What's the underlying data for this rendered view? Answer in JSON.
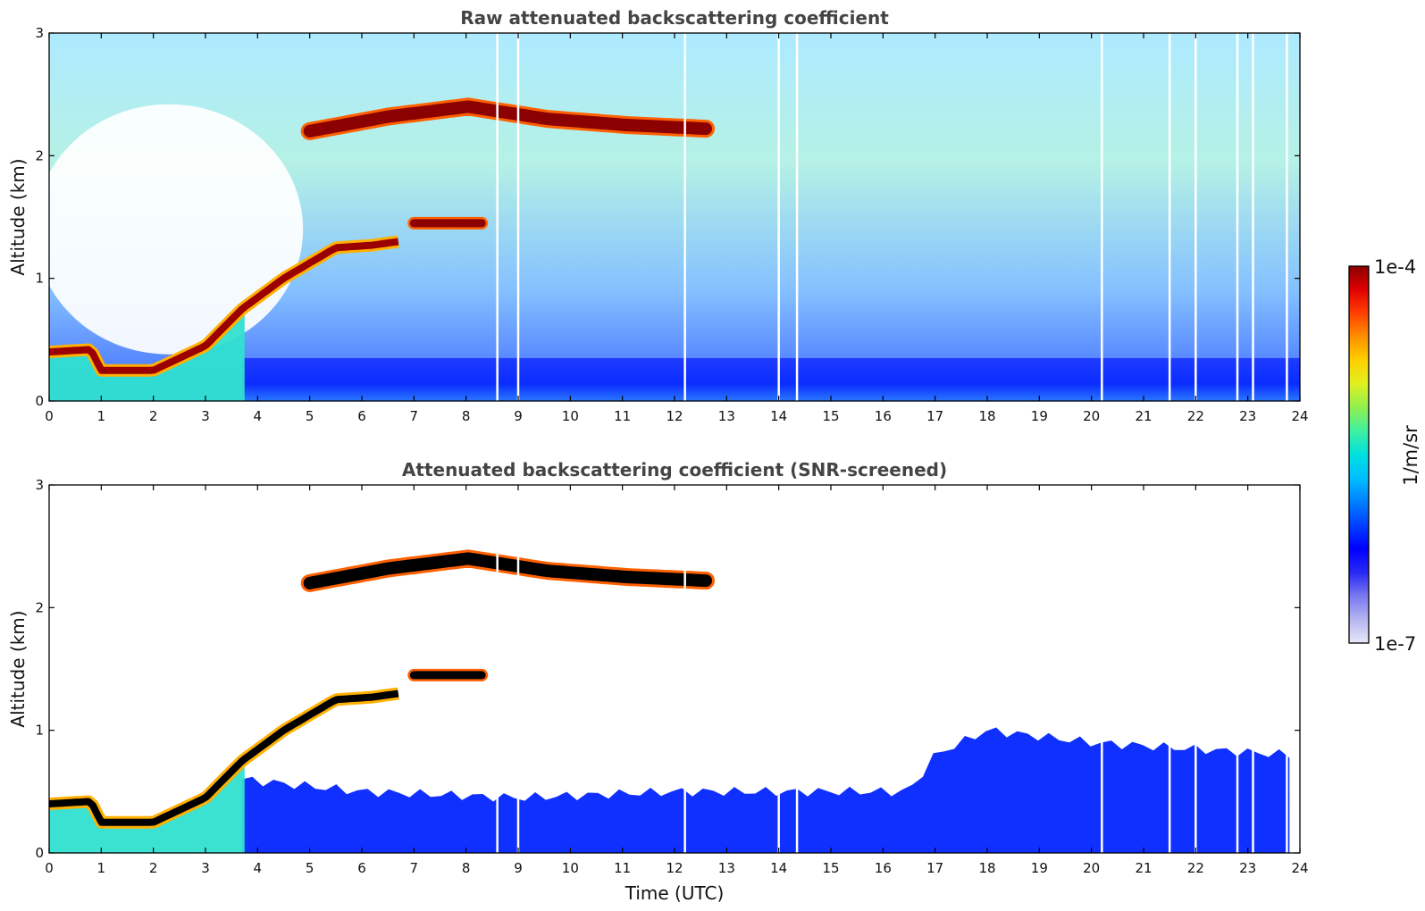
{
  "chart_data": [
    {
      "type": "heatmap",
      "title": "Raw attenuated backscattering coefficient",
      "xlabel": "",
      "ylabel": "Altitude (km)",
      "xlim": [
        0,
        24
      ],
      "ylim": [
        0,
        3
      ],
      "xticks": [
        "0",
        "1",
        "2",
        "3",
        "4",
        "5",
        "6",
        "7",
        "8",
        "9",
        "10",
        "11",
        "12",
        "13",
        "14",
        "15",
        "16",
        "17",
        "18",
        "19",
        "20",
        "21",
        "22",
        "23",
        "24"
      ],
      "yticks": [
        "0",
        "1",
        "2",
        "3"
      ],
      "features": [
        {
          "kind": "boundary_layer_top",
          "x": [
            0,
            0.8,
            1.0,
            2.0,
            3.0,
            3.7,
            4.5,
            5.5,
            6.2,
            6.7
          ],
          "y": [
            0.4,
            0.42,
            0.25,
            0.25,
            0.45,
            0.75,
            1.0,
            1.25,
            1.27,
            1.3
          ]
        },
        {
          "kind": "cloud_layer",
          "x_start": 5.0,
          "x_end": 12.6,
          "y": [
            2.2,
            2.32,
            2.4,
            2.3,
            2.25,
            2.22
          ]
        },
        {
          "kind": "cloud_layer",
          "x_start": 7.0,
          "x_end": 8.3,
          "y": [
            1.45
          ]
        },
        {
          "kind": "ground_aerosol",
          "x_start": 3.7,
          "x_end": 24.0,
          "y_top": 0.35
        }
      ],
      "data_gaps_x": [
        8.6,
        9.0,
        12.2,
        14.0,
        14.35,
        20.2,
        21.5,
        22.0,
        22.8,
        23.1,
        23.75
      ]
    },
    {
      "type": "heatmap",
      "title": "Attenuated backscattering coefficient (SNR-screened)",
      "xlabel": "Time (UTC)",
      "ylabel": "Altitude (km)",
      "xlim": [
        0,
        24
      ],
      "ylim": [
        0,
        3
      ],
      "xticks": [
        "0",
        "1",
        "2",
        "3",
        "4",
        "5",
        "6",
        "7",
        "8",
        "9",
        "10",
        "11",
        "12",
        "13",
        "14",
        "15",
        "16",
        "17",
        "18",
        "19",
        "20",
        "21",
        "22",
        "23",
        "24"
      ],
      "yticks": [
        "0",
        "1",
        "2",
        "3"
      ],
      "features": [
        {
          "kind": "boundary_layer_top",
          "x": [
            0,
            0.8,
            1.0,
            2.0,
            3.0,
            3.7,
            4.5,
            5.5,
            6.2,
            6.7
          ],
          "y": [
            0.4,
            0.42,
            0.25,
            0.25,
            0.45,
            0.75,
            1.0,
            1.25,
            1.27,
            1.3
          ]
        },
        {
          "kind": "cloud_layer",
          "x_start": 5.0,
          "x_end": 12.6,
          "y": [
            2.2,
            2.32,
            2.4,
            2.3,
            2.25,
            2.22
          ]
        },
        {
          "kind": "cloud_layer",
          "x_start": 7.0,
          "x_end": 8.3,
          "y": [
            1.45
          ]
        },
        {
          "kind": "aerosol_layer_top",
          "x": [
            3.7,
            6.0,
            9.0,
            12.0,
            16.5,
            17.0,
            18.0,
            20.0,
            23.8
          ],
          "y": [
            0.6,
            0.5,
            0.45,
            0.5,
            0.5,
            0.8,
            1.0,
            0.9,
            0.8
          ]
        }
      ],
      "data_gaps_x": [
        8.6,
        9.0,
        12.2,
        14.0,
        14.35,
        20.2,
        21.5,
        22.0,
        22.8,
        23.1,
        23.75
      ]
    }
  ],
  "colorbar": {
    "label": "1/m/sr",
    "max_label": "1e-4",
    "min_label": "1e-7",
    "colors": [
      "#e8e8f8",
      "#b4b4f0",
      "#7878f0",
      "#2828f5",
      "#0000ff",
      "#0040ff",
      "#0080ff",
      "#00bfff",
      "#00e0e0",
      "#40f0a0",
      "#90f050",
      "#e0f020",
      "#ffd000",
      "#ff9000",
      "#ff4000",
      "#e00000",
      "#8b0000"
    ]
  }
}
